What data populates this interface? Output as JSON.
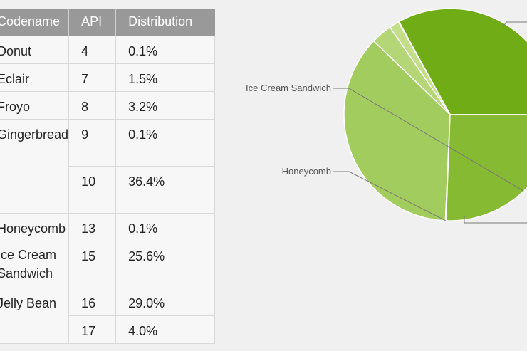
{
  "table": {
    "headers": [
      "Codename",
      "API",
      "Distribution"
    ],
    "rows": [
      {
        "codename": "Donut",
        "api": "4",
        "dist": "0.1%"
      },
      {
        "codename": "Eclair",
        "api": "7",
        "dist": "1.5%"
      },
      {
        "codename": "Froyo",
        "api": "8",
        "dist": "3.2%"
      },
      {
        "codename": "Gingerbread",
        "api": "9",
        "dist": "0.1%"
      },
      {
        "codename": "",
        "api": "10",
        "dist": "36.4%"
      },
      {
        "codename": "Honeycomb",
        "api": "13",
        "dist": "0.1%"
      },
      {
        "codename": "Ice Cream Sandwich",
        "api": "15",
        "dist": "25.6%"
      },
      {
        "codename": "Jelly Bean",
        "api": "16",
        "dist": "29.0%"
      },
      {
        "codename": "",
        "api": "17",
        "dist": "4.0%"
      }
    ]
  },
  "chart_data": {
    "type": "pie",
    "slices": [
      {
        "label": "Jelly Bean",
        "value": 33.0,
        "color": "#6fac15"
      },
      {
        "label": "Donut",
        "value": 0.1,
        "color": "#d0e6a0"
      },
      {
        "label": "Eclair",
        "value": 1.5,
        "color": "#c2de88"
      },
      {
        "label": "Froyo",
        "value": 3.2,
        "color": "#b4d676"
      },
      {
        "label": "Gingerbread",
        "value": 36.5,
        "color": "#a3cc5e"
      },
      {
        "label": "Honeycomb",
        "value": 0.1,
        "color": "#93c24a"
      },
      {
        "label": "Ice Cream Sandwich",
        "value": 25.6,
        "color": "#86ba32"
      }
    ],
    "visible_labels": [
      "Ice Cream Sandwich",
      "Honeycomb"
    ]
  }
}
